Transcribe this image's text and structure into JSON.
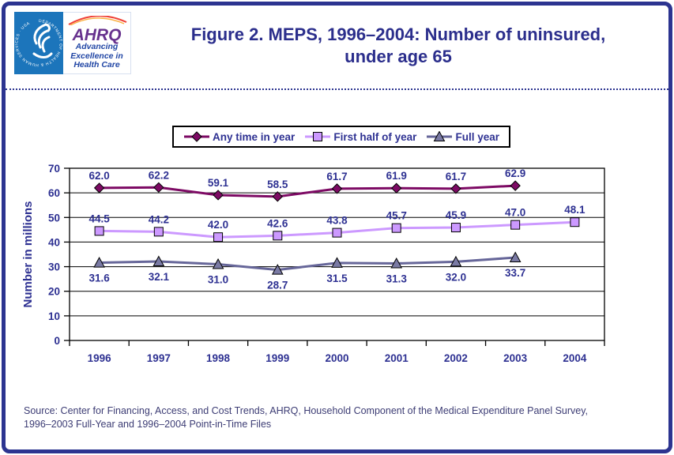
{
  "header": {
    "title_line1": "Figure 2. MEPS, 1996–2004: Number of uninsured,",
    "title_line2": "under age 65",
    "hhs": {
      "seal_text": "DEPARTMENT OF HEALTH & HUMAN SERVICES · USA"
    },
    "ahrq": {
      "word": "AHRQ",
      "tagline": [
        "Advancing",
        "Excellence in",
        "Health Care"
      ]
    }
  },
  "legend": [
    {
      "label": "Any time in year",
      "marker": "diamond",
      "color": "#7D0A64",
      "marker_fill": "#7D0A64"
    },
    {
      "label": "First half of year",
      "marker": "square",
      "color": "#CC99FF",
      "marker_fill": "#CC99FF"
    },
    {
      "label": "Full year",
      "marker": "triangle",
      "color": "#666699",
      "marker_fill": "#7A7AA4"
    }
  ],
  "chart_data": {
    "type": "line",
    "categories": [
      "1996",
      "1997",
      "1998",
      "1999",
      "2000",
      "2001",
      "2002",
      "2003",
      "2004"
    ],
    "series": [
      {
        "name": "Any time in year",
        "values": [
          62.0,
          62.2,
          59.1,
          58.5,
          61.7,
          61.9,
          61.7,
          62.9,
          null
        ],
        "color": "#7D0A64",
        "marker": "diamond",
        "marker_fill": "#7D0A64",
        "label_position": "above"
      },
      {
        "name": "First half of year",
        "values": [
          44.5,
          44.2,
          42.0,
          42.6,
          43.8,
          45.7,
          45.9,
          47.0,
          48.1
        ],
        "color": "#CC99FF",
        "marker": "square",
        "marker_fill": "#CC99FF",
        "label_position": "above"
      },
      {
        "name": "Full year",
        "values": [
          31.6,
          32.1,
          31.0,
          28.7,
          31.5,
          31.3,
          32.0,
          33.7,
          null
        ],
        "color": "#666699",
        "marker": "triangle",
        "marker_fill": "#7A7AA4",
        "label_position": "below"
      }
    ],
    "xlabel": "",
    "ylabel": "Number in millions",
    "ylim": [
      0,
      70
    ],
    "ytick_step": 10,
    "grid": true,
    "legend_position": "top",
    "value_decimals": 1
  },
  "footer": {
    "source_line1": "Source: Center for Financing, Access, and Cost Trends, AHRQ, Household Component of the Medical Expenditure Panel Survey,",
    "source_line2": "1996–2003 Full-Year and 1996–2004 Point-in-Time Files"
  },
  "colors": {
    "frame_navy": "#2C3490",
    "title_navy": "#2B2E8C",
    "chart_text_navy": "#2E3192",
    "source_navy": "#3C3C74",
    "hhs_blue": "#1C75BB",
    "ahrq_purple": "#67328E",
    "ahrq_tagline_blue": "#2146A5",
    "ahrq_arc_red": "#EF4136",
    "ahrq_arc_yellow": "#FBB040",
    "axis_black": "#000000"
  }
}
